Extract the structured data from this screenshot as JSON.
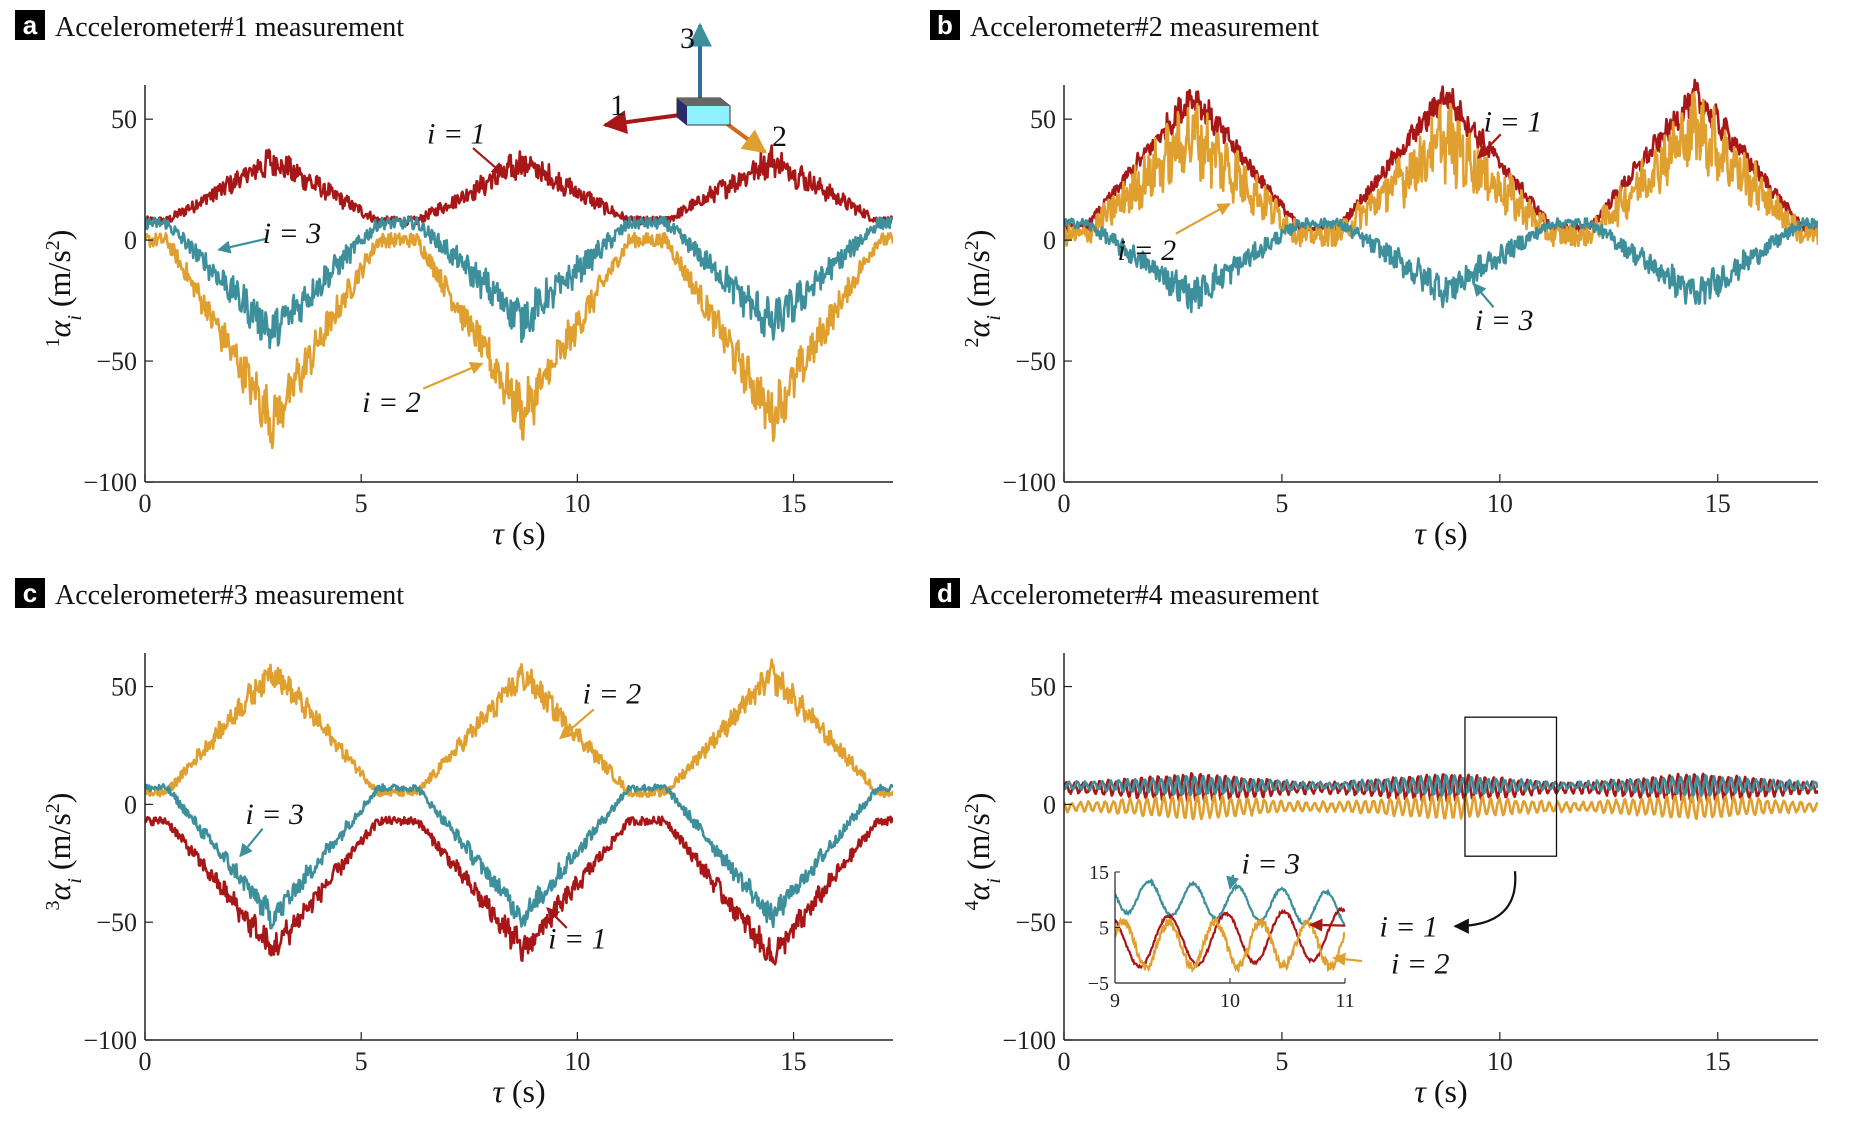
{
  "colors": {
    "red": "#a81717",
    "gold": "#e0a030",
    "teal": "#3d8f9c",
    "axis": "#222222"
  },
  "chart_data": [
    {
      "type": "line",
      "panel": "a",
      "title": "Accelerometer#1 measurement",
      "xlabel": "τ (s)",
      "ylabel_sup": "1",
      "ylabel_main": "α",
      "ylabel_sub": "i",
      "ylabel_unit": "(m/s",
      "ylabel_unit_sup": "2",
      "ylabel_unit_close": ")",
      "xlim": [
        0,
        17.3
      ],
      "ylim": [
        -100,
        60
      ],
      "xticks": [
        0,
        5,
        10,
        15
      ],
      "yticks": [
        -100,
        -50,
        0,
        50
      ],
      "series": [
        {
          "name": "i = 1",
          "color": "#a81717",
          "base": 8,
          "amps": [
            25,
            24,
            25
          ],
          "noise": 3.5
        },
        {
          "name": "i = 2",
          "color": "#e0a030",
          "base": 0,
          "amps": [
            -75,
            -72,
            -73
          ],
          "noise": 6
        },
        {
          "name": "i = 3",
          "color": "#3d8f9c",
          "base": 7,
          "amps": [
            -45,
            -40,
            -42
          ],
          "noise": 5
        }
      ],
      "annotations": [
        {
          "text": "i = 1",
          "x": 7.2,
          "y": 44,
          "ax": 8.3,
          "ay": 27
        },
        {
          "text": "i = 2",
          "x": 5.7,
          "y": -67,
          "ax": 7.8,
          "ay": -51
        },
        {
          "text": "i = 3",
          "x": 3.4,
          "y": 3,
          "ax": 1.7,
          "ay": -4
        }
      ],
      "axes_icon": {
        "labels": [
          "1",
          "2",
          "3"
        ]
      }
    },
    {
      "type": "line",
      "panel": "b",
      "title": "Accelerometer#2 measurement",
      "xlabel": "τ (s)",
      "ylabel_sup": "2",
      "ylabel_main": "α",
      "ylabel_sub": "i",
      "ylabel_unit": "(m/s",
      "ylabel_unit_sup": "2",
      "ylabel_unit_close": ")",
      "xlim": [
        0,
        17.3
      ],
      "ylim": [
        -100,
        60
      ],
      "xticks": [
        0,
        5,
        10,
        15
      ],
      "yticks": [
        -100,
        -50,
        0,
        50
      ],
      "series": [
        {
          "name": "i = 1",
          "color": "#a81717",
          "base": 5,
          "amps": [
            55,
            55,
            55
          ],
          "noise": 3.5
        },
        {
          "name": "i = 2",
          "color": "#e0a030",
          "base": 2,
          "amps": [
            42,
            40,
            45
          ],
          "noise": 9
        },
        {
          "name": "i = 3",
          "color": "#3d8f9c",
          "base": 7,
          "amps": [
            -30,
            -28,
            -30
          ],
          "noise": 4
        }
      ],
      "annotations": [
        {
          "text": "i = 1",
          "x": 10.3,
          "y": 49,
          "ax": 9.5,
          "ay": 34
        },
        {
          "text": "i = 2",
          "x": 1.9,
          "y": -4,
          "ax": 3.8,
          "ay": 15
        },
        {
          "text": "i = 3",
          "x": 10.1,
          "y": -33,
          "ax": 9.4,
          "ay": -18
        }
      ]
    },
    {
      "type": "line",
      "panel": "c",
      "title": "Accelerometer#3 measurement",
      "xlabel": "τ (s)",
      "ylabel_sup": "3",
      "ylabel_main": "α",
      "ylabel_sub": "i",
      "ylabel_unit": "(m/s",
      "ylabel_unit_sup": "2",
      "ylabel_unit_close": ")",
      "xlim": [
        0,
        17.3
      ],
      "ylim": [
        -100,
        60
      ],
      "xticks": [
        0,
        5,
        10,
        15
      ],
      "yticks": [
        -100,
        -50,
        0,
        50
      ],
      "series": [
        {
          "name": "i = 2",
          "color": "#e0a030",
          "base": 5,
          "amps": [
            52,
            50,
            50
          ],
          "noise": 3.5
        },
        {
          "name": "i = 3",
          "color": "#3d8f9c",
          "base": 7,
          "amps": [
            -55,
            -55,
            -55
          ],
          "noise": 3
        },
        {
          "name": "i = 1",
          "color": "#a81717",
          "base": -7,
          "amps": [
            -55,
            -55,
            -58
          ],
          "noise": 3.5
        }
      ],
      "annotations": [
        {
          "text": "i = 2",
          "x": 10.8,
          "y": 47,
          "ax": 9.6,
          "ay": 28
        },
        {
          "text": "i = 1",
          "x": 10.0,
          "y": -57,
          "ax": 9.3,
          "ay": -44
        },
        {
          "text": "i = 3",
          "x": 3.0,
          "y": -4,
          "ax": 2.2,
          "ay": -22
        }
      ]
    },
    {
      "type": "line",
      "panel": "d",
      "title": "Accelerometer#4 measurement",
      "xlabel": "τ (s)",
      "ylabel_sup": "4",
      "ylabel_main": "α",
      "ylabel_sub": "i",
      "ylabel_unit": "(m/s",
      "ylabel_unit_sup": "2",
      "ylabel_unit_close": ")",
      "xlim": [
        0,
        17.3
      ],
      "ylim": [
        -100,
        60
      ],
      "xticks": [
        0,
        5,
        10,
        15
      ],
      "yticks": [
        -100,
        -50,
        0,
        50
      ],
      "series": [
        {
          "name": "i = 1",
          "color": "#a81717",
          "base": 7,
          "osc": 6,
          "freq": 5.2,
          "kind": "wave"
        },
        {
          "name": "i = 2",
          "color": "#e0a030",
          "base": -1,
          "osc": 5,
          "freq": 5.2,
          "kind": "wave"
        },
        {
          "name": "i = 3",
          "color": "#3d8f9c",
          "base": 8,
          "osc": 4,
          "freq": 5.2,
          "kind": "wave"
        }
      ],
      "zoom_box": {
        "x0": 9.2,
        "x1": 11.3,
        "y0": -22,
        "y1": 37
      },
      "inset": {
        "xlim": [
          9,
          11
        ],
        "ylim": [
          -5,
          15
        ],
        "xticks": [
          9,
          10,
          11
        ],
        "yticks": [
          -5,
          5,
          15
        ],
        "annotations": [
          {
            "text": "i = 3",
            "x": 10.05,
            "y": 16.5,
            "ax": 10.0,
            "ay": 12
          },
          {
            "text": "i = 1",
            "x": 11.25,
            "y": 5.2,
            "ax": 10.7,
            "ay": 5.5
          },
          {
            "text": "i = 2",
            "x": 11.35,
            "y": -1.5,
            "ax": 10.9,
            "ay": -0.5
          }
        ]
      }
    }
  ]
}
